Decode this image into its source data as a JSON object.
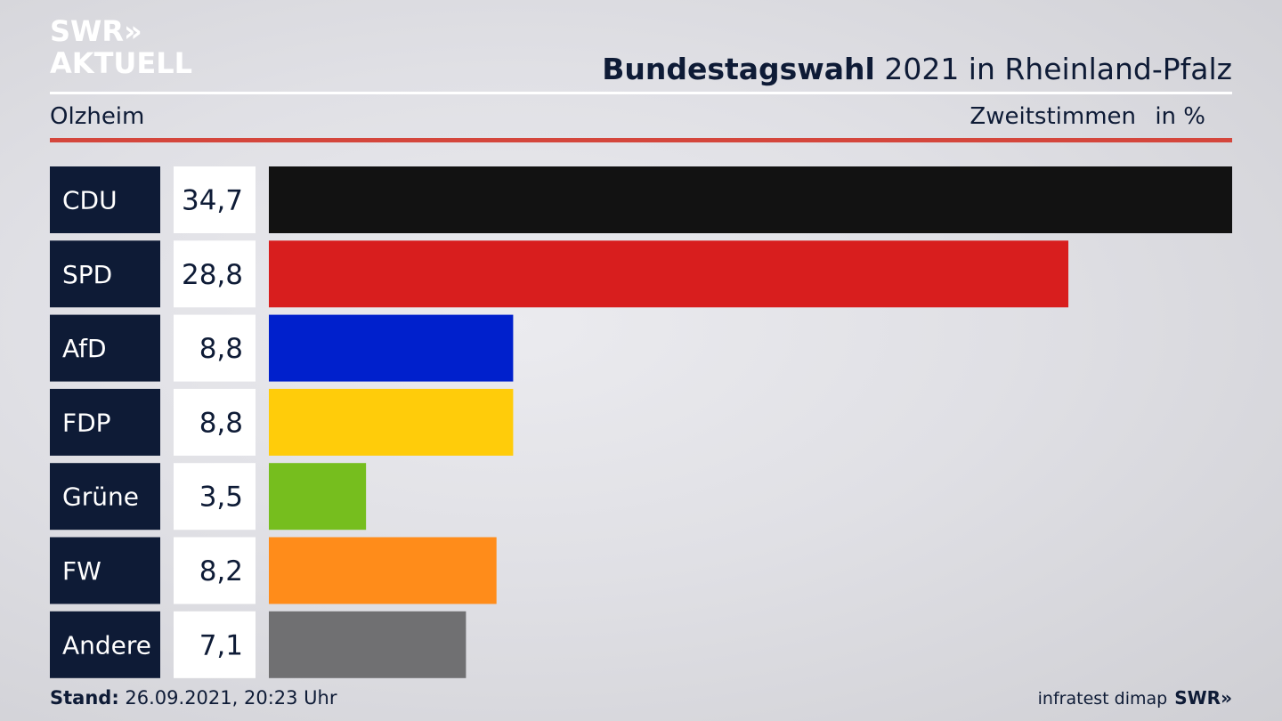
{
  "brand": {
    "line1": "SWR»",
    "line2": "AKTUELL"
  },
  "header": {
    "title_bold": "Bundestagswahl",
    "title_rest": " 2021 in Rheinland-Pfalz",
    "region": "Olzheim",
    "measure": "Zweitstimmen",
    "unit": "in %"
  },
  "chart_data": {
    "type": "bar",
    "orientation": "horizontal",
    "categories": [
      "CDU",
      "SPD",
      "AfD",
      "FDP",
      "Grüne",
      "FW",
      "Andere"
    ],
    "values": [
      34.7,
      28.8,
      8.8,
      8.8,
      3.5,
      8.2,
      7.1
    ],
    "value_labels": [
      "34,7",
      "28,8",
      "8,8",
      "8,8",
      "3,5",
      "8,2",
      "7,1"
    ],
    "colors": [
      "#121212",
      "#d81e1e",
      "#0020cc",
      "#ffcc0a",
      "#76be1e",
      "#ff8c1a",
      "#707072"
    ],
    "xlim": [
      0,
      34.7
    ]
  },
  "footer": {
    "stand_label": "Stand:",
    "stand_value": " 26.09.2021, 20:23 Uhr",
    "source": "infratest dimap",
    "source_logo": "SWR»"
  }
}
